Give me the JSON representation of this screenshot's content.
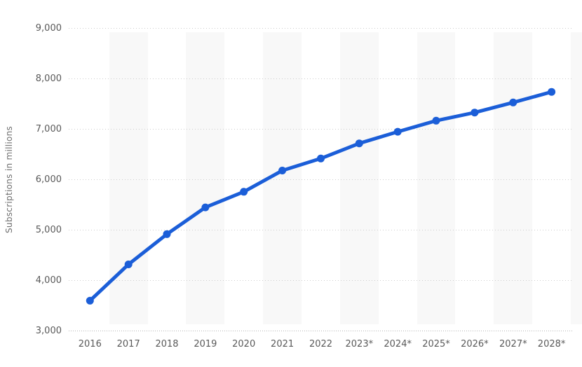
{
  "chart_data": {
    "type": "line",
    "title": "",
    "xlabel": "",
    "ylabel": "Subscriptions in millions",
    "categories": [
      "2016",
      "2017",
      "2018",
      "2019",
      "2020",
      "2021",
      "2022",
      "2023*",
      "2024*",
      "2025*",
      "2026*",
      "2027*",
      "2028*"
    ],
    "series": [
      {
        "name": "Subscriptions",
        "values": [
          3600,
          4320,
          4920,
          5450,
          5760,
          6180,
          6420,
          6720,
          6950,
          7170,
          7330,
          7530,
          7740
        ]
      }
    ],
    "ylim": [
      3000,
      9000
    ],
    "y_tick_step": 1000,
    "y_tick_labels": [
      "3,000",
      "4,000",
      "5,000",
      "6,000",
      "7,000",
      "8,000",
      "9,000"
    ],
    "grid": "horizontal-dotted",
    "alternating_column_bands": true,
    "legend": "none",
    "colors": {
      "line": "#1b5ed8",
      "marker": "#1b5ed8",
      "band": "#f8f8f8",
      "gridline": "#cdcdcd",
      "axis_line": "#b5b5b5",
      "tick_text": "#595959",
      "axis_title_text": "#6e6e6e",
      "background": "#ffffff"
    }
  }
}
